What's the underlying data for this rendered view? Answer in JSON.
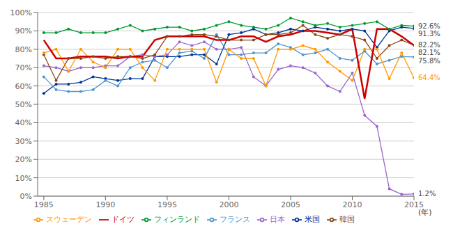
{
  "chart_data": {
    "type": "line",
    "xlabel": "(年)",
    "x": [
      1985,
      1986,
      1987,
      1988,
      1989,
      1990,
      1991,
      1992,
      1993,
      1994,
      1995,
      1996,
      1997,
      1998,
      1999,
      2000,
      2001,
      2002,
      2003,
      2004,
      2005,
      2006,
      2007,
      2008,
      2009,
      2010,
      2011,
      2012,
      2013,
      2014,
      2015
    ],
    "series": [
      {
        "name": "米国",
        "color": "#003399",
        "marker": "circle",
        "values": [
          56,
          61,
          61,
          62,
          65,
          64,
          63,
          64,
          64,
          76,
          76,
          76,
          77,
          77,
          72,
          88,
          89,
          91,
          88,
          89,
          91,
          90,
          92,
          91,
          90,
          91,
          90,
          81,
          90,
          92,
          91.3
        ]
      },
      {
        "name": "フランス",
        "color": "#4f94cd",
        "marker": "circle",
        "values": [
          65,
          58,
          57,
          57,
          58,
          63,
          60,
          70,
          73,
          74,
          70,
          78,
          79,
          75,
          88,
          77,
          77,
          78,
          78,
          83,
          81,
          77,
          78,
          80,
          75,
          74,
          79,
          72,
          74,
          76,
          75.8
        ]
      },
      {
        "name": "日本",
        "color": "#9966cc",
        "marker": "circle",
        "values": [
          71,
          70,
          68,
          70,
          70,
          71,
          71,
          76,
          77,
          76,
          77,
          84,
          82,
          84,
          80,
          80,
          81,
          65,
          60,
          69,
          71,
          70,
          67,
          60,
          57,
          67,
          44,
          38,
          4,
          1,
          1.2
        ]
      },
      {
        "name": "韓国",
        "color": "#8B4513",
        "marker": "circle",
        "values": [
          77,
          63,
          75,
          75,
          76,
          75,
          76,
          76,
          75,
          77,
          87,
          87,
          88,
          88,
          87,
          85,
          85,
          85,
          88,
          88,
          89,
          93,
          88,
          86,
          88,
          87,
          85,
          75,
          82,
          85,
          82.2
        ]
      },
      {
        "name": "スウェーデン",
        "color": "#ff9900",
        "marker": "circle",
        "values": [
          78,
          80,
          68,
          80,
          73,
          70,
          80,
          80,
          70,
          63,
          80,
          80,
          80,
          80,
          62,
          80,
          75,
          75,
          60,
          80,
          80,
          82,
          80,
          73,
          68,
          63,
          80,
          80,
          64,
          78,
          64.4
        ]
      },
      {
        "name": "フィンランド",
        "color": "#009933",
        "marker": "circle",
        "values": [
          89,
          89,
          91,
          89,
          89,
          89,
          91,
          93,
          90,
          91,
          92,
          92,
          90,
          91,
          93,
          95,
          93,
          92,
          91,
          93,
          97,
          95,
          93,
          94,
          92,
          93,
          94,
          95,
          91,
          93,
          92.6
        ]
      },
      {
        "name": "ドイツ",
        "color": "#cc0000",
        "marker": "none",
        "values": [
          85,
          75,
          75,
          76,
          76,
          76,
          75,
          76,
          76,
          85,
          87,
          87,
          87,
          87,
          85,
          85,
          87,
          87,
          84,
          87,
          88,
          90,
          90,
          89,
          88,
          91,
          53,
          91,
          91,
          87,
          82.1
        ]
      }
    ],
    "xlim": [
      1984.5,
      2015
    ],
    "xticks": [
      1985,
      1990,
      1995,
      2000,
      2005,
      2010,
      2015
    ],
    "ylim": [
      0,
      100
    ],
    "yticks": [
      {
        "value": 0,
        "label": "0%"
      },
      {
        "value": 10,
        "label": "10%"
      },
      {
        "value": 20,
        "label": "20%"
      },
      {
        "value": 30,
        "label": "30%"
      },
      {
        "value": 40,
        "label": "40%"
      },
      {
        "value": 50,
        "label": "50%"
      },
      {
        "value": 60,
        "label": "60%"
      },
      {
        "value": 70,
        "label": "70%"
      },
      {
        "value": 80,
        "label": "80%"
      },
      {
        "value": 90,
        "label": "90%"
      },
      {
        "value": 100,
        "label": "100%"
      }
    ],
    "grid": "y",
    "legend": "lower left",
    "annotations": [
      {
        "text": "92.6%",
        "x": 2015,
        "y": 92.6,
        "color": "#444444"
      },
      {
        "text": "91.3%",
        "x": 2015,
        "y": 91.3,
        "color": "#444444"
      },
      {
        "text": "82.2%",
        "x": 2015,
        "y": 82.2,
        "color": "#444444"
      },
      {
        "text": "82.1%",
        "x": 2015,
        "y": 82.1,
        "color": "#444444"
      },
      {
        "text": "75.8%",
        "x": 2015,
        "y": 75.8,
        "color": "#444444"
      },
      {
        "text": "64.4%",
        "x": 2015,
        "y": 64.4,
        "color": "#ff9900"
      },
      {
        "text": "1.2%",
        "x": 2015,
        "y": 1.2,
        "color": "#444444"
      }
    ]
  }
}
